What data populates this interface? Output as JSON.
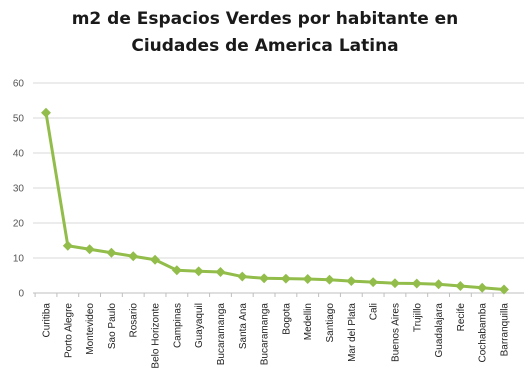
{
  "chart_data": {
    "type": "line",
    "title_line1": "m2 de Espacios Verdes por habitante en",
    "title_line2": "Ciudades de America Latina",
    "xlabel": "",
    "ylabel": "",
    "ylim": [
      0,
      60
    ],
    "yticks": [
      "0",
      "10",
      "20",
      "30",
      "40",
      "50",
      "60"
    ],
    "grid": true,
    "color": "#92bd4a",
    "categories": [
      "Curitiba",
      "Porto Alegre",
      "Montevideo",
      "Sao Paulo",
      "Rosario",
      "Belo Horizonte",
      "Campinas",
      "Guayaquil",
      "Bucaramanga",
      "Santa Ana",
      "Bucaramanga",
      "Bogota",
      "Medellin",
      "Santiago",
      "Mar del Plata",
      "Cali",
      "Buenos Aires",
      "Trujillo",
      "Guadalajara",
      "Recife",
      "Cochabamba",
      "Barranquilla"
    ],
    "values": [
      51.5,
      13.5,
      12.5,
      11.5,
      10.5,
      9.5,
      6.5,
      6.2,
      6.0,
      4.7,
      4.2,
      4.1,
      4.0,
      3.8,
      3.4,
      3.1,
      2.8,
      2.7,
      2.5,
      2.0,
      1.5,
      1.0
    ]
  }
}
